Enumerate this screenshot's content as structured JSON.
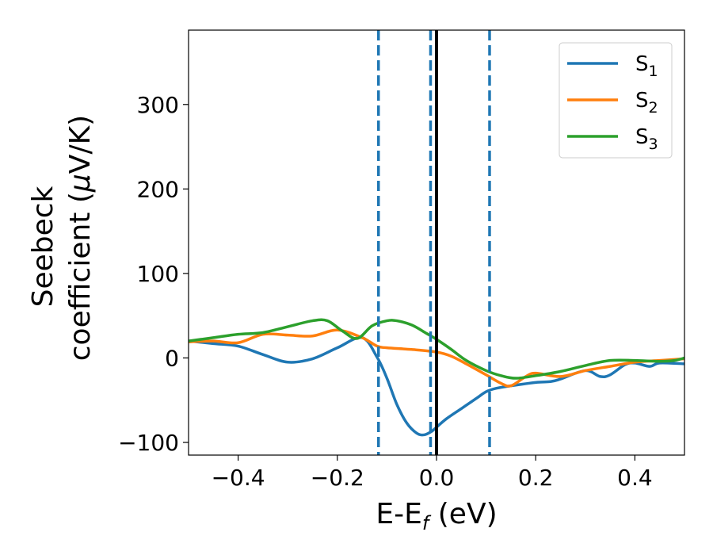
{
  "chart_data": {
    "type": "line",
    "xlabel": {
      "base": "E-E",
      "sub": "f",
      "tail": " (eV)"
    },
    "ylabel": {
      "line1": "Seebeck",
      "line2_prefix": "coefficient  (",
      "mu": "μ",
      "line2_suffix": "V/K)"
    },
    "xlim": [
      -0.5,
      0.5
    ],
    "ylim": [
      -115,
      388
    ],
    "xticks": [
      -0.4,
      -0.2,
      0.0,
      0.2,
      0.4
    ],
    "xtick_labels": [
      "−0.4",
      "−0.2",
      "0.0",
      "0.2",
      "0.4"
    ],
    "yticks": [
      -100,
      0,
      100,
      200,
      300
    ],
    "ytick_labels": [
      "−100",
      "0",
      "100",
      "200",
      "300"
    ],
    "grid": false,
    "legend_position": "top-right",
    "vertical_lines": [
      {
        "x": -0.117,
        "style": "dashed",
        "color": "#1f77b4"
      },
      {
        "x": -0.012,
        "style": "dashed",
        "color": "#1f77b4"
      },
      {
        "x": 0.107,
        "style": "dashed",
        "color": "#1f77b4"
      },
      {
        "x": 0.0,
        "style": "solid",
        "color": "#000000"
      }
    ],
    "series": [
      {
        "name": "S",
        "sub": "1",
        "color": "#1f77b4",
        "x": [
          -0.5,
          -0.45,
          -0.4,
          -0.35,
          -0.3,
          -0.25,
          -0.2,
          -0.15,
          -0.12,
          -0.1,
          -0.08,
          -0.06,
          -0.04,
          -0.025,
          -0.01,
          0.0,
          0.02,
          0.05,
          0.08,
          0.1,
          0.12,
          0.15,
          0.2,
          0.23,
          0.25,
          0.3,
          0.33,
          0.35,
          0.38,
          0.4,
          0.43,
          0.45,
          0.5
        ],
        "y": [
          20,
          17,
          14,
          4,
          -5,
          -1,
          12,
          24,
          1,
          -24,
          -55,
          -77,
          -89,
          -91,
          -87,
          -82,
          -72,
          -60,
          -48,
          -40,
          -36,
          -33,
          -29,
          -28,
          -25,
          -15,
          -22,
          -20,
          -8,
          -6,
          -10,
          -6,
          -7
        ]
      },
      {
        "name": "S",
        "sub": "2",
        "color": "#ff7f0e",
        "x": [
          -0.5,
          -0.45,
          -0.4,
          -0.35,
          -0.3,
          -0.25,
          -0.2,
          -0.15,
          -0.12,
          -0.1,
          -0.05,
          0.0,
          0.03,
          0.06,
          0.1,
          0.13,
          0.15,
          0.18,
          0.2,
          0.25,
          0.3,
          0.35,
          0.4,
          0.45,
          0.5
        ],
        "y": [
          19,
          20,
          18,
          28,
          27,
          26,
          33,
          24,
          14,
          12,
          10,
          7,
          2,
          -7,
          -20,
          -30,
          -33,
          -22,
          -18,
          -22,
          -15,
          -10,
          -5,
          -3,
          -1
        ]
      },
      {
        "name": "S",
        "sub": "3",
        "color": "#2ca02c",
        "x": [
          -0.5,
          -0.45,
          -0.4,
          -0.35,
          -0.3,
          -0.25,
          -0.22,
          -0.19,
          -0.16,
          -0.13,
          -0.1,
          -0.08,
          -0.05,
          -0.02,
          0.0,
          0.03,
          0.06,
          0.1,
          0.13,
          0.16,
          0.2,
          0.25,
          0.3,
          0.35,
          0.4,
          0.45,
          0.48,
          0.5
        ],
        "y": [
          20,
          24,
          28,
          30,
          37,
          44,
          44,
          32,
          23,
          38,
          44,
          44,
          39,
          29,
          22,
          10,
          -3,
          -15,
          -21,
          -24,
          -21,
          -16,
          -9,
          -3,
          -3,
          -4,
          -3,
          0
        ]
      }
    ]
  }
}
